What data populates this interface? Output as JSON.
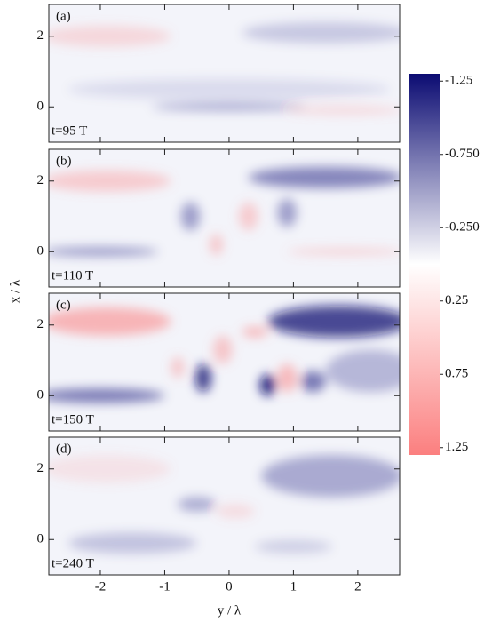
{
  "chart_data": {
    "type": "heatmap",
    "xlabel": "y / λ",
    "ylabel": "x / λ",
    "xlim": [
      -2.8,
      2.65
    ],
    "xticks": [
      -2,
      -1,
      0,
      1,
      2
    ],
    "ylim": [
      -1,
      2.9
    ],
    "yticks": [
      0,
      2
    ],
    "colormap": [
      "#0b0b72",
      "#ffffff",
      "#fb7f7f"
    ],
    "panels": [
      {
        "label": "(a)",
        "time": "t=95 T"
      },
      {
        "label": "(b)",
        "time": "t=110 T"
      },
      {
        "label": "(c)",
        "time": "t=150 T"
      },
      {
        "label": "(d)",
        "time": "t=240 T"
      }
    ],
    "colorbar": {
      "lim": [
        -1.3,
        1.3
      ],
      "ticks": [
        -1.25,
        {
          "value": -0.75,
          "label": "-0.750"
        },
        {
          "value": -0.25,
          "label": "-0.250"
        },
        0.25,
        0.75,
        1.25
      ]
    }
  }
}
